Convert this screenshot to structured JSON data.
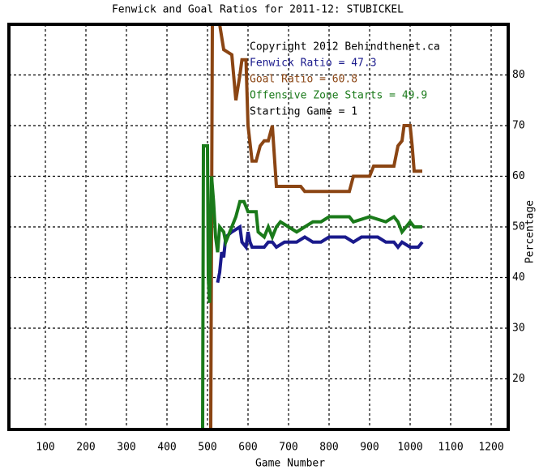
{
  "chart_data": {
    "type": "line",
    "title": "Fenwick and Goal Ratios for 2011-12: STUBICKEL",
    "x_label": "Game Number",
    "y_label": "Percentage",
    "xlim": [
      10,
      1240
    ],
    "ylim": [
      10,
      90
    ],
    "xticks": [
      100,
      200,
      300,
      400,
      500,
      600,
      700,
      800,
      900,
      1000,
      1100,
      1200
    ],
    "yticks": [
      20,
      30,
      40,
      50,
      60,
      70,
      80
    ],
    "grid": true,
    "annotations": [
      "Copyright 2012 Behindthenet.ca",
      "Starting Game = 1"
    ],
    "series": [
      {
        "name": "Fenwick Ratio = 47.3",
        "color": "#1a1a8c",
        "x": [
          525,
          530,
          535,
          540,
          545,
          560,
          580,
          585,
          595,
          600,
          605,
          610,
          640,
          650,
          660,
          670,
          690,
          720,
          740,
          760,
          780,
          800,
          840,
          860,
          880,
          920,
          940,
          960,
          970,
          980,
          1000,
          1020,
          1030
        ],
        "values": [
          39,
          41,
          45,
          44,
          48,
          49,
          50,
          47,
          46,
          49,
          47,
          46,
          46,
          47,
          47,
          46,
          47,
          47,
          48,
          47,
          47,
          48,
          48,
          47,
          48,
          48,
          47,
          47,
          46,
          47,
          46,
          46,
          47
        ]
      },
      {
        "name": "Goal Ratio = 60.8",
        "color": "#8b4513",
        "x": [
          508,
          512,
          530,
          540,
          560,
          570,
          580,
          585,
          595,
          600,
          610,
          620,
          630,
          640,
          650,
          660,
          670,
          700,
          730,
          740,
          800,
          850,
          860,
          900,
          910,
          960,
          970,
          980,
          985,
          1000,
          1005,
          1010,
          1030
        ],
        "values": [
          10,
          90,
          90,
          85,
          84,
          75,
          80,
          83,
          83,
          70,
          63,
          63,
          66,
          67,
          67,
          70,
          58,
          58,
          58,
          57,
          57,
          57,
          60,
          60,
          62,
          62,
          66,
          67,
          70,
          70,
          66,
          61,
          61
        ]
      },
      {
        "name": "Offensive Zone Starts = 49.9",
        "color": "#1a7a1a",
        "x": [
          488,
          490,
          500,
          502,
          505,
          510,
          515,
          520,
          525,
          530,
          540,
          545,
          560,
          570,
          580,
          590,
          600,
          620,
          625,
          640,
          650,
          660,
          670,
          680,
          700,
          720,
          740,
          760,
          780,
          800,
          850,
          860,
          900,
          940,
          960,
          970,
          980,
          990,
          1000,
          1010,
          1030
        ],
        "values": [
          10,
          66,
          66,
          40,
          35,
          60,
          55,
          48,
          45,
          50,
          49,
          47,
          50,
          52,
          55,
          55,
          53,
          53,
          49,
          48,
          50,
          48,
          50,
          51,
          50,
          49,
          50,
          51,
          51,
          52,
          52,
          51,
          52,
          51,
          52,
          51,
          49,
          50,
          51,
          50,
          50
        ]
      }
    ]
  }
}
